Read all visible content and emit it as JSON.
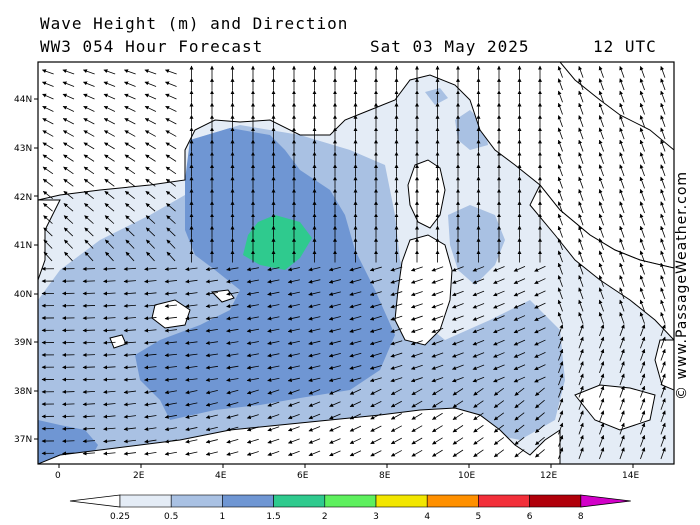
{
  "header": {
    "title": "Wave Height (m) and Direction",
    "subtitle": "WW3 054 Hour Forecast",
    "date": "Sat 03 May 2025",
    "time": "12 UTC"
  },
  "credit": "© www.PassageWeather.com",
  "latitude_labels": [
    "44N",
    "43N",
    "42N",
    "41N",
    "40N",
    "39N",
    "38N",
    "37N"
  ],
  "longitude_labels": [
    "0",
    "2E",
    "4E",
    "6E",
    "8E",
    "10E",
    "12E",
    "14E"
  ],
  "legend": {
    "labels": [
      "0.25",
      "0.5",
      "1",
      "1.5",
      "2",
      "3",
      "4",
      "5",
      "6",
      "8"
    ],
    "colors": [
      "#ffffff",
      "#e4ecf6",
      "#a9c1e3",
      "#6f96d3",
      "#2fca8e",
      "#5ef05e",
      "#f2e600",
      "#ff9000",
      "#f22f3a",
      "#b0000a",
      "#d200c8"
    ]
  },
  "colors": {
    "sea_025": "#e4ecf6",
    "sea_05": "#a9c1e3",
    "sea_1": "#6f96d3",
    "sea_15": "#2fca8e",
    "land": "#ffffff"
  }
}
